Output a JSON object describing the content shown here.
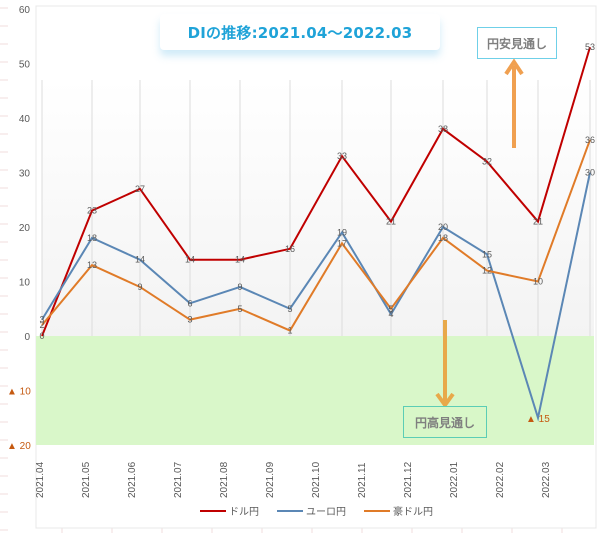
{
  "chart_data": {
    "type": "line",
    "title": "DIの推移:2021.04～2022.03",
    "xlabel": "",
    "ylabel": "",
    "ylim": [
      -20,
      60
    ],
    "yticks": [
      "60",
      "50",
      "40",
      "30",
      "20",
      "10",
      "0",
      "▲ 10",
      "▲ 20"
    ],
    "categories": [
      "2021.04",
      "2021.05",
      "2021.06",
      "2021.07",
      "2021.08",
      "2021.09",
      "2021.10",
      "2021.11",
      "2021.12",
      "2022.01",
      "2022.02",
      "2022.03"
    ],
    "series": [
      {
        "name": "ドル円",
        "color": "#c00000",
        "values": [
          0,
          23,
          27,
          14,
          14,
          16,
          33,
          21,
          38,
          32,
          21,
          53
        ]
      },
      {
        "name": "ユーロ円",
        "color": "#5b87b5",
        "values": [
          3,
          18,
          14,
          6,
          9,
          5,
          19,
          4,
          20,
          15,
          -15,
          30
        ]
      },
      {
        "name": "豪ドル円",
        "color": "#e07b28",
        "values": [
          2,
          13,
          9,
          3,
          5,
          1,
          17,
          5,
          18,
          12,
          10,
          36
        ]
      }
    ],
    "data_labels": {
      "ドル円": [
        "0",
        "23",
        "27",
        "14",
        "14",
        "16",
        "33",
        "21",
        "38",
        "32",
        "21",
        "53"
      ],
      "ユーロ円": [
        "3",
        "18",
        "14",
        "6",
        "9",
        "5",
        "19",
        "4",
        "20",
        "15",
        "▲15",
        "30"
      ],
      "豪ドル円": [
        "2",
        "13",
        "9",
        "3",
        "5",
        "1",
        "17",
        "5",
        "18",
        "12",
        "10",
        "36"
      ]
    },
    "annotations": [
      {
        "text": "円安見通し",
        "arrow": "up"
      },
      {
        "text": "円高見通し",
        "arrow": "down"
      }
    ],
    "negative_region_color": "#d9f7c9",
    "grid": "vertical",
    "legend_position": "bottom"
  },
  "title": "DIの推移:2021.04～2022.03",
  "annotations": {
    "yen_weak": "円安見通し",
    "yen_strong": "円高見通し"
  },
  "legend": [
    {
      "label": "ドル円",
      "color": "#c00000"
    },
    {
      "label": "ユーロ円",
      "color": "#5b87b5"
    },
    {
      "label": "豪ドル円",
      "color": "#e07b28"
    }
  ],
  "x_labels": [
    "2021.04",
    "2021.05",
    "2021.06",
    "2021.07",
    "2021.08",
    "2021.09",
    "2021.10",
    "2021.11",
    "2021.12",
    "2022.01",
    "2022.02",
    "2022.03"
  ],
  "y_labels": {
    "t60": "60",
    "t50": "50",
    "t40": "40",
    "t30": "30",
    "t20": "20",
    "t10": "10",
    "t0": "0",
    "n10": "10",
    "n20": "20"
  },
  "neg_marker": "▲",
  "min_label": "15"
}
